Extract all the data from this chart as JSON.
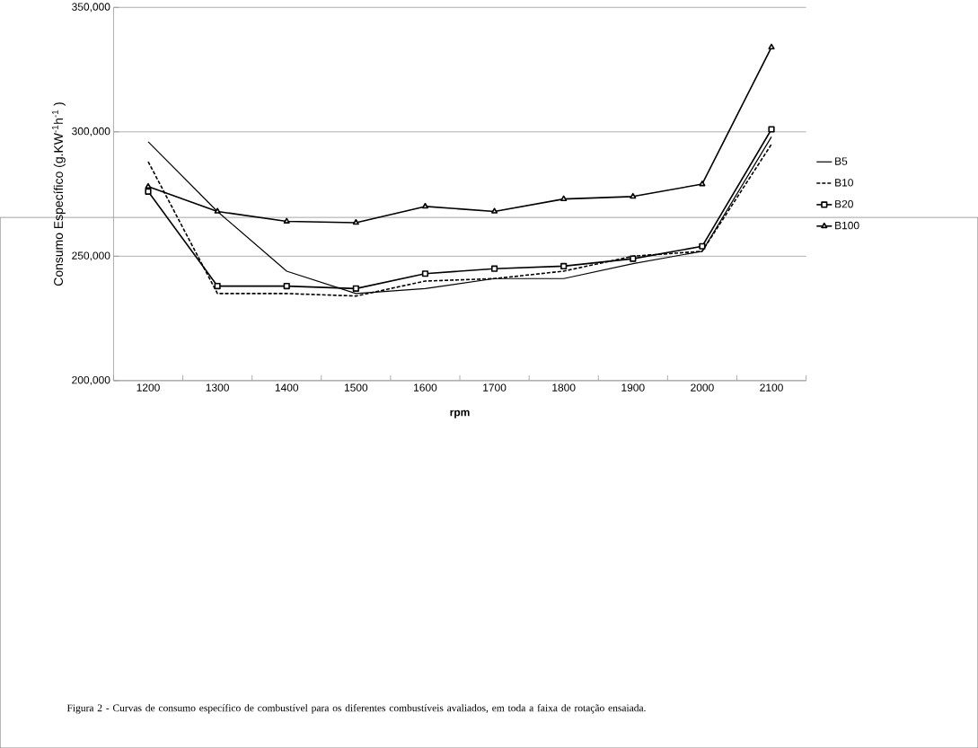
{
  "chart_data": {
    "type": "line",
    "xlabel": "rpm",
    "ylabel": "Consumo Específico (g.KW$^{-1}$h$^{-1}$ )",
    "categories": [
      "1200",
      "1300",
      "1400",
      "1500",
      "1600",
      "1700",
      "1800",
      "1900",
      "2000",
      "2100"
    ],
    "ylim": [
      200000,
      350000
    ],
    "yticks": [
      {
        "value": 200000,
        "label": "200,000"
      },
      {
        "value": 250000,
        "label": "250,000"
      },
      {
        "value": 300000,
        "label": "300,000"
      },
      {
        "value": 350000,
        "label": "350,000"
      }
    ],
    "grid": "y",
    "legend": "right",
    "series": [
      {
        "name": "B5",
        "color": "#000000",
        "marker": "none",
        "line_style": "solid",
        "values": [
          296000,
          268000,
          244000,
          235000,
          237000,
          241000,
          241000,
          247000,
          252000,
          298000
        ]
      },
      {
        "name": "B10",
        "color": "#000000",
        "marker": "none",
        "line_style": "dashed",
        "values": [
          288000,
          235000,
          235000,
          234000,
          240000,
          241000,
          244000,
          250000,
          252000,
          295000
        ]
      },
      {
        "name": "B20",
        "color": "#000000",
        "marker": "square",
        "line_style": "solid",
        "values": [
          276000,
          238000,
          238000,
          237000,
          243000,
          245000,
          246000,
          249000,
          254000,
          301000
        ]
      },
      {
        "name": "B100",
        "color": "#000000",
        "marker": "triangle",
        "line_style": "solid",
        "values": [
          278000,
          268000,
          264000,
          263500,
          270000,
          268000,
          273000,
          274000,
          279000,
          334000
        ]
      }
    ],
    "annotations": [
      "Figura 2 - Curvas de consumo específico de combustível para os diferentes combustíveis avaliados, em toda a faixa de rotação ensaiada."
    ]
  }
}
